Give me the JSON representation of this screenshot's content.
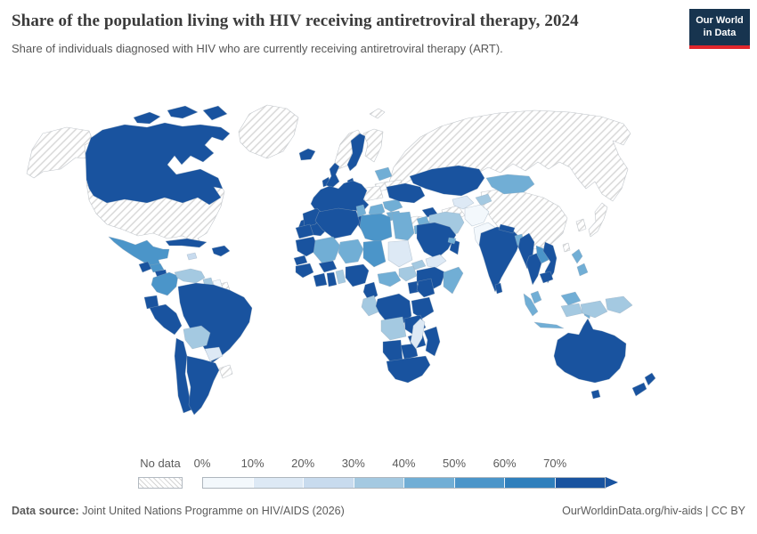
{
  "header": {
    "title": "Share of the population living with HIV receiving antiretroviral therapy, 2024",
    "subtitle": "Share of individuals diagnosed with HIV who are currently receiving antiretroviral therapy (ART).",
    "logo": {
      "line1": "Our World",
      "line2": "in Data",
      "bg_color": "#17344f",
      "accent_color": "#e0262c"
    }
  },
  "legend": {
    "no_data_label": "No data",
    "tick_labels": [
      "0%",
      "10%",
      "20%",
      "30%",
      "40%",
      "50%",
      "60%",
      "70%"
    ]
  },
  "footer": {
    "source_label": "Data source:",
    "source_text": " Joint United Nations Programme on HIV/AIDS (2026)",
    "link_text": "OurWorldinData.org/hiv-aids | CC BY"
  },
  "chart_data": {
    "type": "choropleth",
    "title": "Share of the population living with HIV receiving antiretroviral therapy, 2024",
    "unit": "%",
    "legend_position": "bottom",
    "bins": [
      {
        "label": "0-10%",
        "color": "#f3f8fc"
      },
      {
        "label": "10-20%",
        "color": "#dde9f5"
      },
      {
        "label": "20-30%",
        "color": "#c8dbee"
      },
      {
        "label": "30-40%",
        "color": "#a4c9e1"
      },
      {
        "label": "40-50%",
        "color": "#71aed5"
      },
      {
        "label": "50-60%",
        "color": "#4b95c9"
      },
      {
        "label": "60-70%",
        "color": "#2f7fbc"
      },
      {
        "label": "70%+",
        "color": "#19539f"
      }
    ],
    "no_data_style": "white with gray diagonal hatching",
    "regions": {
      "usa": {
        "label": "United States",
        "bin": "no-data"
      },
      "greenland": {
        "label": "Greenland",
        "bin": "no-data"
      },
      "russia": {
        "label": "Russia",
        "bin": "no-data"
      },
      "china": {
        "label": "China",
        "bin": "no-data"
      },
      "japan": {
        "label": "Japan",
        "bin": "no-data"
      },
      "korea": {
        "label": "North & South Korea",
        "bin": "no-data"
      },
      "taiwan": {
        "label": "Taiwan",
        "bin": "no-data"
      },
      "norway": {
        "label": "Norway",
        "bin": "no-data"
      },
      "svalbard": {
        "label": "Svalbard",
        "bin": "no-data"
      },
      "finland": {
        "label": "Finland",
        "bin": "no-data"
      },
      "lithuania": {
        "label": "Lithuania",
        "bin": "no-data"
      },
      "poland": {
        "label": "Poland",
        "bin": "no-data"
      },
      "belarus": {
        "label": "Belarus",
        "bin": "no-data"
      },
      "turkey": {
        "label": "Turkey",
        "bin": "no-data"
      },
      "turkmenistan": {
        "label": "Turkmenistan",
        "bin": "no-data"
      },
      "french-guiana": {
        "label": "French Guiana",
        "bin": "no-data"
      },
      "uruguay": {
        "label": "Uruguay",
        "bin": "no-data"
      },
      "canada": {
        "label": "Canada",
        "bin": 7
      },
      "iceland": {
        "label": "Iceland",
        "bin": 7
      },
      "ireland": {
        "label": "Ireland",
        "bin": 7
      },
      "uk": {
        "label": "United Kingdom",
        "bin": 7
      },
      "sweden": {
        "label": "Sweden",
        "bin": 7
      },
      "denmark": {
        "label": "Denmark",
        "bin": 7
      },
      "west-europe": {
        "label": "Western & Central Europe",
        "bin": 7
      },
      "iberia": {
        "label": "Spain & Portugal",
        "bin": 7
      },
      "italy": {
        "label": "Italy",
        "bin": 7
      },
      "greece": {
        "label": "Greece",
        "bin": 7
      },
      "ukraine": {
        "label": "Ukraine",
        "bin": 7
      },
      "baltic": {
        "label": "Estonia & Latvia",
        "bin": 4
      },
      "balkans": {
        "label": "Balkans",
        "bin": 4
      },
      "romania": {
        "label": "Romania",
        "bin": 4
      },
      "bulgaria": {
        "label": "Bulgaria",
        "bin": 4
      },
      "kazakhstan": {
        "label": "Kazakhstan",
        "bin": 7
      },
      "caucasus": {
        "label": "Caucasus",
        "bin": 7
      },
      "uzbekistan": {
        "label": "Uzbekistan",
        "bin": 1
      },
      "kyrgyz-tajik": {
        "label": "Kyrgyzstan & Tajikistan",
        "bin": 3
      },
      "mongolia": {
        "label": "Mongolia",
        "bin": 4
      },
      "syria": {
        "label": "Syria",
        "bin": 4
      },
      "iraq": {
        "label": "Iraq",
        "bin": 4
      },
      "jordan": {
        "label": "Jordan",
        "bin": 4
      },
      "iran": {
        "label": "Iran",
        "bin": 3
      },
      "afghanistan": {
        "label": "Afghanistan",
        "bin": 0
      },
      "pakistan": {
        "label": "Pakistan",
        "bin": 0
      },
      "saudi": {
        "label": "Saudi Arabia",
        "bin": 7
      },
      "yemen": {
        "label": "Yemen",
        "bin": 1
      },
      "oman": {
        "label": "Oman",
        "bin": 7
      },
      "uae": {
        "label": "United Arab Emirates",
        "bin": 4
      },
      "india": {
        "label": "India",
        "bin": 7
      },
      "nepal": {
        "label": "Nepal",
        "bin": 7
      },
      "bangladesh": {
        "label": "Bangladesh",
        "bin": 4
      },
      "sri-lanka": {
        "label": "Sri Lanka",
        "bin": 7
      },
      "myanmar": {
        "label": "Myanmar",
        "bin": 7
      },
      "thailand": {
        "label": "Thailand",
        "bin": 7
      },
      "laos": {
        "label": "Laos",
        "bin": 5
      },
      "vietnam": {
        "label": "Vietnam",
        "bin": 7
      },
      "cambodia": {
        "label": "Cambodia",
        "bin": 7
      },
      "malaysia-pen": {
        "label": "Malaysia (peninsular)",
        "bin": 4
      },
      "malaysia-borneo": {
        "label": "Malaysia (Borneo)",
        "bin": 4
      },
      "philippines": {
        "label": "Philippines",
        "bin": 4
      },
      "indo-sumatra": {
        "label": "Indonesia (Sumatra)",
        "bin": 4
      },
      "indo-java": {
        "label": "Indonesia (Java)",
        "bin": 4
      },
      "indo-borneo": {
        "label": "Indonesia (Kalimantan)",
        "bin": 3
      },
      "sulawesi": {
        "label": "Indonesia (Sulawesi)",
        "bin": 4
      },
      "indo-papua": {
        "label": "Indonesia (Papua)",
        "bin": 3
      },
      "png": {
        "label": "Papua New Guinea",
        "bin": 3
      },
      "australia": {
        "label": "Australia",
        "bin": 7
      },
      "nz": {
        "label": "New Zealand",
        "bin": 7
      },
      "mexico": {
        "label": "Mexico",
        "bin": 5
      },
      "guatemala": {
        "label": "Guatemala",
        "bin": 7
      },
      "honduras": {
        "label": "Honduras",
        "bin": 5
      },
      "nicaragua": {
        "label": "Nicaragua",
        "bin": 7
      },
      "costa-panama": {
        "label": "Costa Rica & Panama",
        "bin": 5
      },
      "cuba": {
        "label": "Cuba",
        "bin": 7
      },
      "jamaica": {
        "label": "Jamaica",
        "bin": 2
      },
      "hispaniola": {
        "label": "Haiti & Dominican Republic",
        "bin": 7
      },
      "colombia": {
        "label": "Colombia",
        "bin": 5
      },
      "venezuela": {
        "label": "Venezuela",
        "bin": 3
      },
      "guyana": {
        "label": "Guyana",
        "bin": 3
      },
      "suriname": {
        "label": "Suriname",
        "bin": 0
      },
      "ecuador": {
        "label": "Ecuador",
        "bin": 7
      },
      "peru": {
        "label": "Peru",
        "bin": 7
      },
      "brazil": {
        "label": "Brazil",
        "bin": 7
      },
      "bolivia": {
        "label": "Bolivia",
        "bin": 3
      },
      "paraguay": {
        "label": "Paraguay",
        "bin": 1
      },
      "chile": {
        "label": "Chile",
        "bin": 7
      },
      "argentina": {
        "label": "Argentina",
        "bin": 7
      },
      "morocco": {
        "label": "Morocco",
        "bin": 7
      },
      "w-sahara": {
        "label": "Western Sahara",
        "bin": 7
      },
      "algeria": {
        "label": "Algeria",
        "bin": 7
      },
      "tunisia": {
        "label": "Tunisia",
        "bin": 4
      },
      "libya": {
        "label": "Libya",
        "bin": 5
      },
      "egypt": {
        "label": "Egypt",
        "bin": 4
      },
      "mauritania": {
        "label": "Mauritania",
        "bin": 7
      },
      "mali": {
        "label": "Mali",
        "bin": 4
      },
      "niger": {
        "label": "Niger",
        "bin": 4
      },
      "chad": {
        "label": "Chad",
        "bin": 5
      },
      "sudan": {
        "label": "Sudan",
        "bin": 1
      },
      "eritrea": {
        "label": "Eritrea & Djibouti",
        "bin": 3
      },
      "ethiopia": {
        "label": "Ethiopia",
        "bin": 7
      },
      "somalia": {
        "label": "Somalia",
        "bin": 4
      },
      "senegal": {
        "label": "Senegal",
        "bin": 7
      },
      "guinea-grp": {
        "label": "Guinea, Sierra Leone & Liberia",
        "bin": 7
      },
      "burkina": {
        "label": "Burkina Faso",
        "bin": 7
      },
      "ivory": {
        "label": "Cote d'Ivoire",
        "bin": 7
      },
      "ghana": {
        "label": "Ghana",
        "bin": 7
      },
      "togo-benin": {
        "label": "Togo & Benin",
        "bin": 3
      },
      "nigeria": {
        "label": "Nigeria",
        "bin": 7
      },
      "cameroon": {
        "label": "Cameroon",
        "bin": 7
      },
      "car": {
        "label": "Central African Republic",
        "bin": 4
      },
      "south-sudan": {
        "label": "South Sudan",
        "bin": 3
      },
      "uganda": {
        "label": "Uganda",
        "bin": 7
      },
      "kenya": {
        "label": "Kenya",
        "bin": 7
      },
      "drc": {
        "label": "Democratic Republic of Congo",
        "bin": 7
      },
      "gabon-congo": {
        "label": "Gabon & Congo",
        "bin": 3
      },
      "tanzania": {
        "label": "Tanzania",
        "bin": 7
      },
      "angola": {
        "label": "Angola",
        "bin": 3
      },
      "zambia": {
        "label": "Zambia",
        "bin": 7
      },
      "mozambique": {
        "label": "Mozambique & Malawi",
        "bin": 7
      },
      "zimbabwe": {
        "label": "Zimbabwe",
        "bin": 7
      },
      "namibia": {
        "label": "Namibia",
        "bin": 7
      },
      "botswana": {
        "label": "Botswana",
        "bin": 7
      },
      "south-africa": {
        "label": "South Africa",
        "bin": 7
      },
      "madagascar": {
        "label": "Madagascar",
        "bin": 1
      }
    }
  }
}
